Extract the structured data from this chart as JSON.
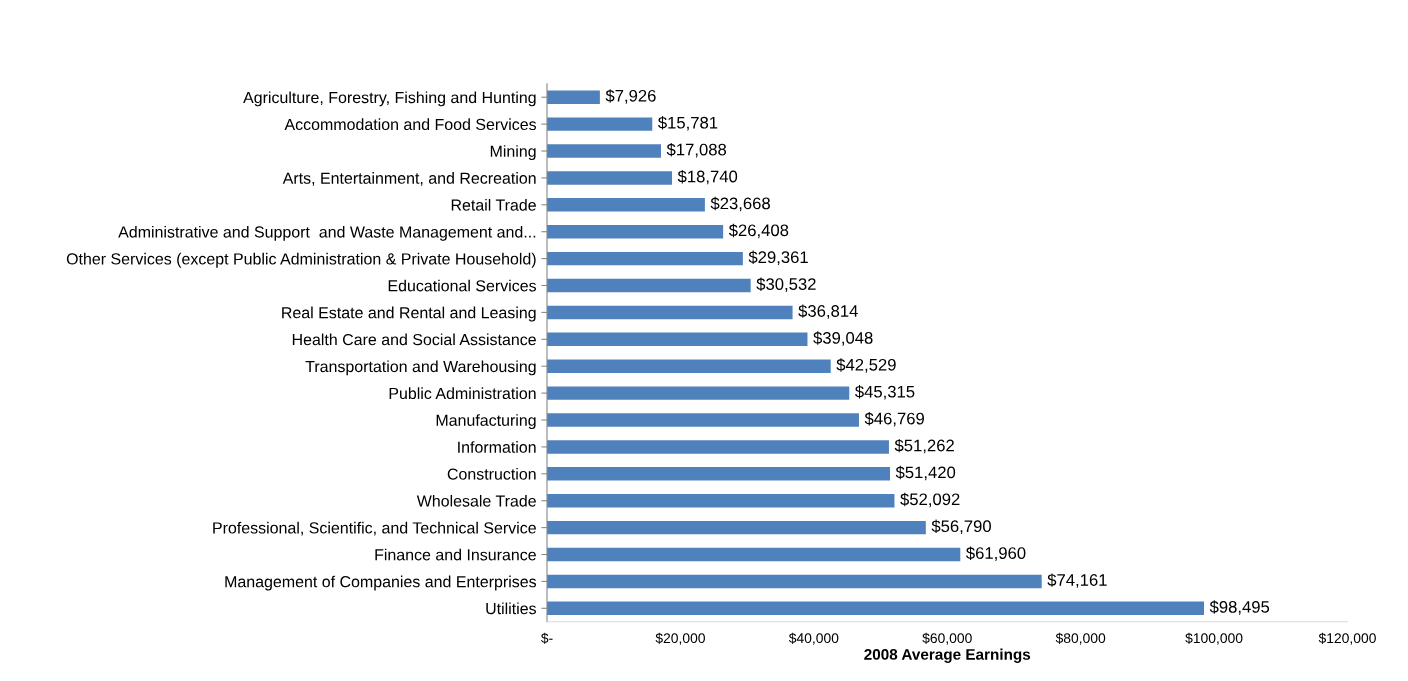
{
  "chart_data": {
    "type": "bar",
    "orientation": "horizontal",
    "xlabel": "2008 Average Earnings",
    "categories": [
      "Agriculture, Forestry, Fishing and Hunting",
      "Accommodation and Food Services",
      "Mining",
      "Arts, Entertainment, and Recreation",
      "Retail Trade",
      "Administrative and Support  and Waste Management and...",
      "Other Services (except Public Administration & Private Household)",
      "Educational Services",
      "Real Estate and Rental and Leasing",
      "Health Care and Social Assistance",
      "Transportation and Warehousing",
      "Public Administration",
      "Manufacturing",
      "Information",
      "Construction",
      "Wholesale Trade",
      "Professional, Scientific, and Technical Service",
      "Finance and Insurance",
      "Management of Companies and Enterprises",
      "Utilities"
    ],
    "values": [
      7926,
      15781,
      17088,
      18740,
      23668,
      26408,
      29361,
      30532,
      36814,
      39048,
      42529,
      45315,
      46769,
      51262,
      51420,
      52092,
      56790,
      61960,
      74161,
      98495
    ],
    "value_labels": [
      "$7,926",
      "$15,781",
      "$17,088",
      "$18,740",
      "$23,668",
      "$26,408",
      "$29,361",
      "$30,532",
      "$36,814",
      "$39,048",
      "$42,529",
      "$45,315",
      "$46,769",
      "$51,262",
      "$51,420",
      "$52,092",
      "$56,790",
      "$61,960",
      "$74,161",
      "$98,495"
    ],
    "color": "#4f81bd",
    "xlim": [
      0,
      120000
    ],
    "xticks": [
      {
        "value": 0,
        "label": "$-"
      },
      {
        "value": 20000,
        "label": "$20,000"
      },
      {
        "value": 40000,
        "label": "$40,000"
      },
      {
        "value": 60000,
        "label": "$60,000"
      },
      {
        "value": 80000,
        "label": "$80,000"
      },
      {
        "value": 100000,
        "label": "$100,000"
      },
      {
        "value": 120000,
        "label": "$120,000"
      }
    ]
  }
}
